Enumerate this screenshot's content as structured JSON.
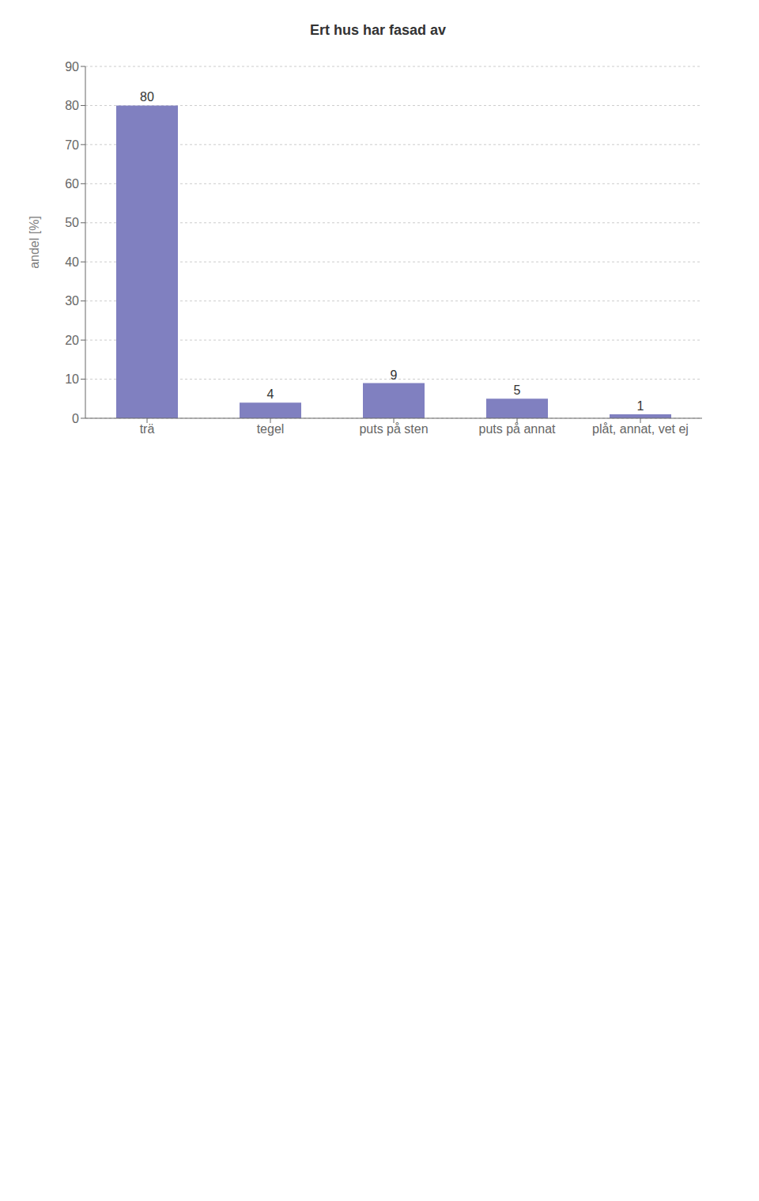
{
  "chart_data": {
    "type": "bar",
    "title": "Ert hus har fasad av",
    "categories": [
      "trä",
      "tegel",
      "puts på sten",
      "puts på annat",
      "plåt, annat, vet ej"
    ],
    "values": [
      80,
      4,
      9,
      5,
      1
    ],
    "color": "#8080c0",
    "ylabel": "andel [%]",
    "ylim": [
      0,
      90
    ],
    "yticks": [
      0,
      10,
      20,
      30,
      40,
      50,
      60,
      70,
      80,
      90
    ],
    "grid": true,
    "data_labels": true
  }
}
